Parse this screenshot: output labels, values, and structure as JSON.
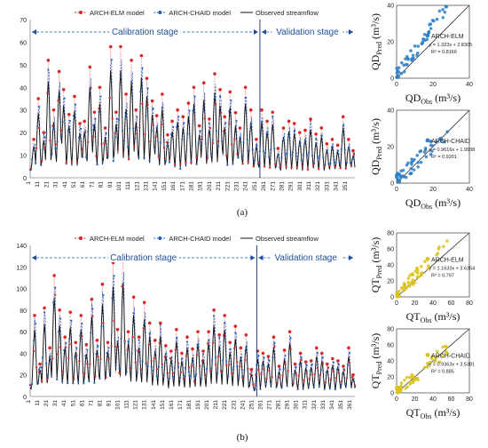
{
  "chart_data": [
    {
      "id": "QD_series",
      "panel": "(a)",
      "type": "line",
      "legend": [
        "ARCH-ELM model",
        "ARCH-CHAID model",
        "Observed streamflow"
      ],
      "colors": {
        "elm": "#d62828",
        "chaid": "#1f5fbf",
        "obs": "#111111"
      },
      "stages": [
        "Calibration stage",
        "Validation stage"
      ],
      "split_x": 255,
      "xlim": [
        1,
        360
      ],
      "ylim": [
        0,
        70
      ],
      "yticks": [
        0,
        10,
        20,
        30,
        40,
        50,
        60,
        70
      ],
      "xticks": [
        1,
        11,
        21,
        31,
        41,
        51,
        61,
        71,
        81,
        91,
        101,
        111,
        121,
        131,
        141,
        151,
        161,
        171,
        181,
        191,
        201,
        211,
        221,
        231,
        241,
        251,
        261,
        271,
        281,
        291,
        301,
        311,
        321,
        331,
        341,
        351
      ],
      "peaks": [
        [
          5,
          17
        ],
        [
          10,
          35
        ],
        [
          16,
          20
        ],
        [
          21,
          52
        ],
        [
          27,
          30
        ],
        [
          33,
          47
        ],
        [
          38,
          39
        ],
        [
          44,
          28
        ],
        [
          50,
          36
        ],
        [
          56,
          24
        ],
        [
          61,
          25
        ],
        [
          67,
          49
        ],
        [
          72,
          29
        ],
        [
          78,
          40
        ],
        [
          84,
          22
        ],
        [
          90,
          58
        ],
        [
          96,
          29
        ],
        [
          101,
          58
        ],
        [
          107,
          37
        ],
        [
          113,
          52
        ],
        [
          118,
          30
        ],
        [
          124,
          54
        ],
        [
          130,
          44
        ],
        [
          136,
          34
        ],
        [
          141,
          27
        ],
        [
          147,
          37
        ],
        [
          153,
          19
        ],
        [
          158,
          25
        ],
        [
          164,
          30
        ],
        [
          170,
          27
        ],
        [
          176,
          33
        ],
        [
          182,
          40
        ],
        [
          188,
          23
        ],
        [
          193,
          42
        ],
        [
          199,
          26
        ],
        [
          205,
          46
        ],
        [
          211,
          39
        ],
        [
          216,
          27
        ],
        [
          222,
          38
        ],
        [
          228,
          28
        ],
        [
          233,
          22
        ],
        [
          239,
          40
        ],
        [
          245,
          30
        ],
        [
          251,
          17
        ],
        [
          257,
          30
        ],
        [
          263,
          25
        ],
        [
          269,
          29
        ],
        [
          275,
          13
        ],
        [
          281,
          22
        ],
        [
          287,
          25
        ],
        [
          293,
          24
        ],
        [
          299,
          20
        ],
        [
          305,
          21
        ],
        [
          311,
          26
        ],
        [
          317,
          19
        ],
        [
          323,
          22
        ],
        [
          329,
          15
        ],
        [
          335,
          17
        ],
        [
          341,
          14
        ],
        [
          347,
          27
        ],
        [
          353,
          17
        ],
        [
          358,
          12
        ]
      ]
    },
    {
      "id": "QD_elm_scatter",
      "panel": "(a)",
      "type": "scatter",
      "xlabel": "QD",
      "xsub": "Obs",
      "ylabel": "QD",
      "ysub": "Pred",
      "unit": "(m³/s)",
      "legend": "ARCH-ELM",
      "equation": "y = 1.323x + 2.8305",
      "r2": "R² = 0.8166",
      "xlim": [
        0,
        40
      ],
      "ylim": [
        0,
        40
      ],
      "ticks": [
        0,
        20,
        40
      ]
    },
    {
      "id": "QD_chaid_scatter",
      "panel": "(a)",
      "type": "scatter",
      "xlabel": "QD",
      "xsub": "Obs",
      "ylabel": "QD",
      "ysub": "Pred",
      "unit": "(m³/s)",
      "legend": "ARCH-CHAID",
      "equation": "y = 0.9616x + 1.9938",
      "r2": "R² = 0.9201",
      "xlim": [
        0,
        40
      ],
      "ylim": [
        0,
        40
      ],
      "ticks": [
        0,
        20,
        40
      ]
    },
    {
      "id": "QT_series",
      "panel": "(b)",
      "type": "line",
      "legend": [
        "ARCH-ELM model",
        "ARCH-CHAID model",
        "Observed streamflow"
      ],
      "colors": {
        "elm": "#d62828",
        "chaid": "#1f5fbf",
        "obs": "#111111"
      },
      "stages": [
        "Calibration stage",
        "Validation stage"
      ],
      "split_x": 255,
      "xlim": [
        1,
        365
      ],
      "ylim": [
        0,
        140
      ],
      "yticks": [
        0,
        20,
        40,
        60,
        80,
        100,
        120,
        140
      ],
      "xticks": [
        1,
        11,
        21,
        31,
        41,
        51,
        61,
        71,
        81,
        91,
        101,
        111,
        121,
        131,
        141,
        151,
        161,
        171,
        181,
        191,
        201,
        211,
        221,
        231,
        241,
        251,
        261,
        271,
        281,
        291,
        301,
        311,
        321,
        331,
        341,
        351,
        361
      ],
      "peaks": [
        [
          6,
          75
        ],
        [
          12,
          30
        ],
        [
          17,
          82
        ],
        [
          23,
          45
        ],
        [
          28,
          112
        ],
        [
          34,
          80
        ],
        [
          40,
          55
        ],
        [
          46,
          78
        ],
        [
          52,
          50
        ],
        [
          58,
          75
        ],
        [
          64,
          48
        ],
        [
          70,
          90
        ],
        [
          76,
          52
        ],
        [
          82,
          104
        ],
        [
          88,
          50
        ],
        [
          94,
          124
        ],
        [
          99,
          62
        ],
        [
          105,
          128
        ],
        [
          111,
          60
        ],
        [
          117,
          92
        ],
        [
          123,
          55
        ],
        [
          129,
          87
        ],
        [
          135,
          68
        ],
        [
          141,
          52
        ],
        [
          147,
          68
        ],
        [
          153,
          47
        ],
        [
          159,
          42
        ],
        [
          165,
          62
        ],
        [
          171,
          40
        ],
        [
          177,
          55
        ],
        [
          183,
          44
        ],
        [
          189,
          60
        ],
        [
          195,
          42
        ],
        [
          201,
          60
        ],
        [
          207,
          80
        ],
        [
          213,
          57
        ],
        [
          219,
          75
        ],
        [
          225,
          50
        ],
        [
          231,
          65
        ],
        [
          237,
          45
        ],
        [
          243,
          57
        ],
        [
          249,
          25
        ],
        [
          256,
          42
        ],
        [
          262,
          40
        ],
        [
          268,
          37
        ],
        [
          274,
          55
        ],
        [
          280,
          28
        ],
        [
          286,
          42
        ],
        [
          292,
          60
        ],
        [
          298,
          30
        ],
        [
          304,
          40
        ],
        [
          310,
          32
        ],
        [
          316,
          33
        ],
        [
          322,
          45
        ],
        [
          328,
          40
        ],
        [
          334,
          30
        ],
        [
          340,
          35
        ],
        [
          346,
          33
        ],
        [
          352,
          28
        ],
        [
          358,
          45
        ],
        [
          363,
          20
        ]
      ]
    },
    {
      "id": "QT_elm_scatter",
      "panel": "(b)",
      "type": "scatter",
      "xlabel": "QT",
      "xsub": "Obs",
      "ylabel": "QT",
      "ysub": "Pred",
      "unit": "(m³/s)",
      "legend": "ARCH-ELM",
      "equation": "y = 1.1633x + 3.6354",
      "r2": "R² = 0.797",
      "xlim": [
        0,
        80
      ],
      "ylim": [
        0,
        80
      ],
      "ticks": [
        0,
        20,
        40,
        60,
        80
      ]
    },
    {
      "id": "QT_chaid_scatter",
      "panel": "(b)",
      "type": "scatter",
      "xlabel": "QT",
      "xsub": "Obs",
      "ylabel": "QT",
      "ysub": "Pred",
      "unit": "(m³/s)",
      "legend": "ARCH-CHAID",
      "equation": "y = 0.9363x + 3.5381",
      "r2": "R² = 0.885",
      "xlim": [
        0,
        80
      ],
      "ylim": [
        0,
        80
      ],
      "ticks": [
        0,
        20,
        40,
        60,
        80
      ]
    }
  ],
  "captions": {
    "a": "(a)",
    "b": "(b)"
  }
}
